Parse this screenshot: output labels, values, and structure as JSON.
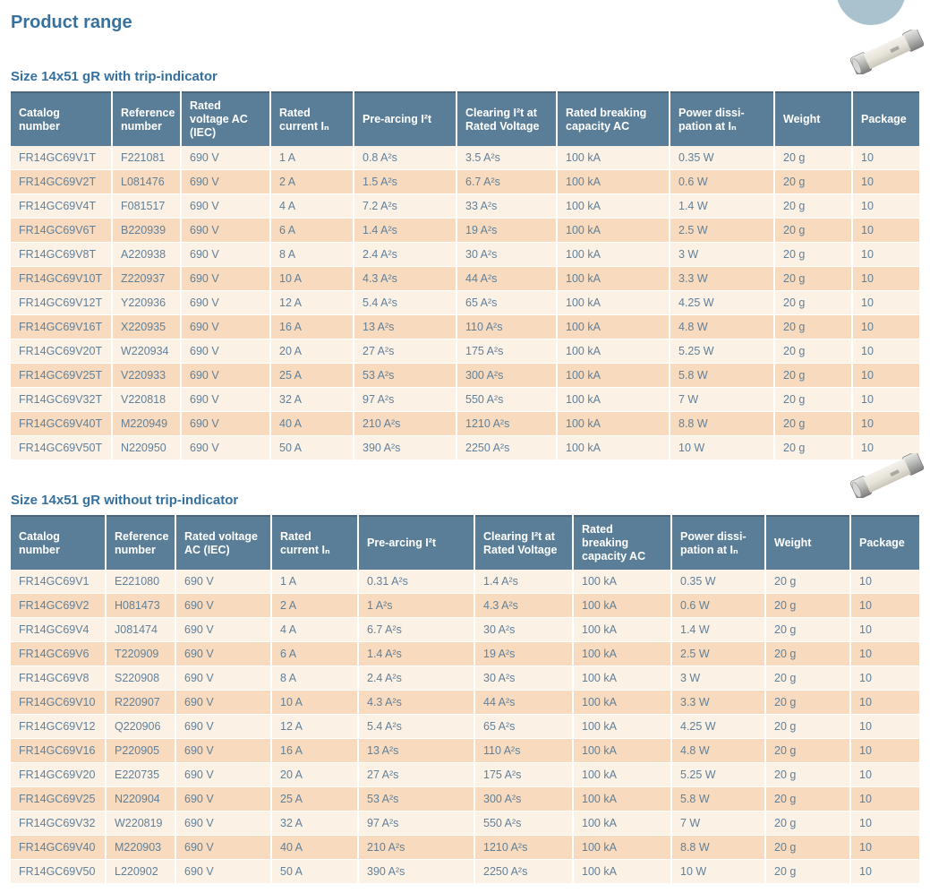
{
  "page": {
    "title": "Product range"
  },
  "colors": {
    "header_bg": "#5A7E98",
    "header_top_border": "#4A6579",
    "header_text": "#FFFFFF",
    "row_light": "#FCF1E5",
    "row_dark": "#F8DBBE",
    "body_text": "#61809A",
    "title_text": "#37719F",
    "corner_circle": "#A9C2CE"
  },
  "decorations": {
    "corner_circle": "partially-cropped light blue circle, top right",
    "fuse_photo": "cylindrical ceramic fuse with metal end caps, tilted"
  },
  "tables": [
    {
      "title": "Size 14x51 gR with trip-indicator",
      "headers": [
        "Catalog number",
        "Reference number",
        "Rated voltage AC (IEC)",
        "Rated current Iₙ",
        "Pre-arcing I²t",
        "Clearing I²t at Rated Voltage",
        "Rated breaking capacity AC",
        "Power dissi-pation at Iₙ",
        "Weight",
        "Package"
      ],
      "rows": [
        [
          "FR14GC69V1T",
          "F221081",
          "690 V",
          "1 A",
          "0.8 A²s",
          "3.5 A²s",
          "100 kA",
          "0.35 W",
          "20 g",
          "10"
        ],
        [
          "FR14GC69V2T",
          "L081476",
          "690 V",
          "2 A",
          "1.5 A²s",
          "6.7 A²s",
          "100 kA",
          "0.6 W",
          "20 g",
          "10"
        ],
        [
          "FR14GC69V4T",
          "F081517",
          "690 V",
          "4 A",
          "7.2 A²s",
          "33 A²s",
          "100 kA",
          "1.4 W",
          "20 g",
          "10"
        ],
        [
          "FR14GC69V6T",
          "B220939",
          "690 V",
          "6 A",
          "1.4 A²s",
          "19 A²s",
          "100 kA",
          "2.5 W",
          "20 g",
          "10"
        ],
        [
          "FR14GC69V8T",
          "A220938",
          "690 V",
          "8 A",
          "2.4 A²s",
          "30 A²s",
          "100 kA",
          "3 W",
          "20 g",
          "10"
        ],
        [
          "FR14GC69V10T",
          "Z220937",
          "690 V",
          "10 A",
          "4.3 A²s",
          "44 A²s",
          "100 kA",
          "3.3 W",
          "20 g",
          "10"
        ],
        [
          "FR14GC69V12T",
          "Y220936",
          "690 V",
          "12 A",
          "5.4 A²s",
          "65 A²s",
          "100 kA",
          "4.25 W",
          "20 g",
          "10"
        ],
        [
          "FR14GC69V16T",
          "X220935",
          "690 V",
          "16 A",
          "13 A²s",
          "110 A²s",
          "100 kA",
          "4.8 W",
          "20 g",
          "10"
        ],
        [
          "FR14GC69V20T",
          "W220934",
          "690 V",
          "20 A",
          "27 A²s",
          "175 A²s",
          "100 kA",
          "5.25 W",
          "20 g",
          "10"
        ],
        [
          "FR14GC69V25T",
          "V220933",
          "690 V",
          "25 A",
          "53 A²s",
          "300 A²s",
          "100 kA",
          "5.8 W",
          "20 g",
          "10"
        ],
        [
          "FR14GC69V32T",
          "V220818",
          "690 V",
          "32 A",
          "97 A²s",
          "550 A²s",
          "100 kA",
          "7 W",
          "20 g",
          "10"
        ],
        [
          "FR14GC69V40T",
          "M220949",
          "690 V",
          "40 A",
          "210 A²s",
          "1210 A²s",
          "100 kA",
          "8.8 W",
          "20 g",
          "10"
        ],
        [
          "FR14GC69V50T",
          "N220950",
          "690 V",
          "50 A",
          "390 A²s",
          "2250 A²s",
          "100 kA",
          "10 W",
          "20 g",
          "10"
        ]
      ]
    },
    {
      "title": "Size 14x51 gR without trip-indicator",
      "headers": [
        "Catalog number",
        "Reference number",
        "Rated voltage AC (IEC)",
        "Rated current Iₙ",
        "Pre-arcing I²t",
        "Clearing I²t at Rated Voltage",
        "Rated breaking capacity AC",
        "Power dissi-pation at Iₙ",
        "Weight",
        "Package"
      ],
      "rows": [
        [
          "FR14GC69V1",
          "E221080",
          "690 V",
          "1 A",
          "0.31 A²s",
          "1.4 A²s",
          "100 kA",
          "0.35 W",
          "20 g",
          "10"
        ],
        [
          "FR14GC69V2",
          "H081473",
          "690 V",
          "2 A",
          "1 A²s",
          "4.3 A²s",
          "100 kA",
          "0.6 W",
          "20 g",
          "10"
        ],
        [
          "FR14GC69V4",
          "J081474",
          "690 V",
          "4 A",
          "6.7 A²s",
          "30 A²s",
          "100 kA",
          "1.4 W",
          "20 g",
          "10"
        ],
        [
          "FR14GC69V6",
          "T220909",
          "690 V",
          "6 A",
          "1.4 A²s",
          "19 A²s",
          "100 kA",
          "2.5 W",
          "20 g",
          "10"
        ],
        [
          "FR14GC69V8",
          "S220908",
          "690 V",
          "8 A",
          "2.4 A²s",
          "30 A²s",
          "100 kA",
          "3 W",
          "20 g",
          "10"
        ],
        [
          "FR14GC69V10",
          "R220907",
          "690 V",
          "10 A",
          "4.3 A²s",
          "44 A²s",
          "100 kA",
          "3.3 W",
          "20 g",
          "10"
        ],
        [
          "FR14GC69V12",
          "Q220906",
          "690 V",
          "12 A",
          "5.4 A²s",
          "65 A²s",
          "100 kA",
          "4.25 W",
          "20 g",
          "10"
        ],
        [
          "FR14GC69V16",
          "P220905",
          "690 V",
          "16 A",
          "13 A²s",
          "110 A²s",
          "100 kA",
          "4.8 W",
          "20 g",
          "10"
        ],
        [
          "FR14GC69V20",
          "E220735",
          "690 V",
          "20 A",
          "27 A²s",
          "175 A²s",
          "100 kA",
          "5.25 W",
          "20 g",
          "10"
        ],
        [
          "FR14GC69V25",
          "N220904",
          "690 V",
          "25 A",
          "53 A²s",
          "300 A²s",
          "100 kA",
          "5.8 W",
          "20 g",
          "10"
        ],
        [
          "FR14GC69V32",
          "W220819",
          "690 V",
          "32 A",
          "97 A²s",
          "550 A²s",
          "100 kA",
          "7 W",
          "20 g",
          "10"
        ],
        [
          "FR14GC69V40",
          "M220903",
          "690 V",
          "40 A",
          "210 A²s",
          "1210 A²s",
          "100 kA",
          "8.8 W",
          "20 g",
          "10"
        ],
        [
          "FR14GC69V50",
          "L220902",
          "690 V",
          "50 A",
          "390 A²s",
          "2250 A²s",
          "100 kA",
          "10 W",
          "20 g",
          "10"
        ]
      ]
    }
  ]
}
